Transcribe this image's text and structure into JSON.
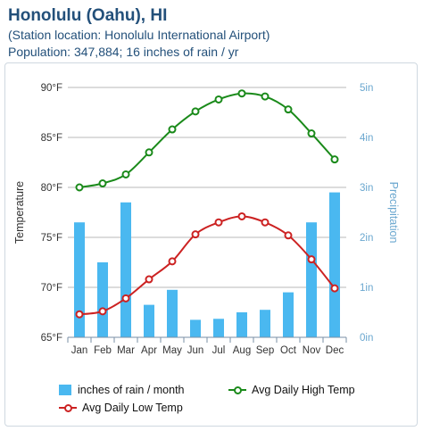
{
  "header": {
    "title": "Honolulu (Oahu), HI",
    "line1": "(Station location: Honolulu International Airport)",
    "line2": "Population: 347,884; 16 inches of rain / yr"
  },
  "colors": {
    "high": "#1a8a1a",
    "low": "#cc2222",
    "rain": "#4ab8f0",
    "right_axis": "#6aa7cf",
    "left_axis": "#333333"
  },
  "chart_data": {
    "type": "bar",
    "categories": [
      "Jan",
      "Feb",
      "Mar",
      "Apr",
      "May",
      "Jun",
      "Jul",
      "Aug",
      "Sep",
      "Oct",
      "Nov",
      "Dec"
    ],
    "series": [
      {
        "name": "inches of rain / month",
        "type": "bar",
        "axis": "right",
        "values": [
          2.3,
          1.5,
          2.7,
          0.65,
          0.95,
          0.35,
          0.37,
          0.5,
          0.55,
          0.9,
          2.3,
          2.9
        ]
      },
      {
        "name": "Avg Daily High Temp",
        "type": "line",
        "axis": "left",
        "values": [
          80,
          80.4,
          81.3,
          83.5,
          85.8,
          87.6,
          88.8,
          89.4,
          89.1,
          87.8,
          85.4,
          82.8
        ]
      },
      {
        "name": "Avg Daily Low Temp",
        "type": "line",
        "axis": "left",
        "values": [
          67.3,
          67.6,
          68.9,
          70.8,
          72.6,
          75.3,
          76.5,
          77.1,
          76.5,
          75.2,
          72.8,
          69.9
        ]
      }
    ],
    "ylabel": "Temperature",
    "ylabel_right": "Precipitation",
    "ylim": [
      65,
      90
    ],
    "ylim_right": [
      0,
      5
    ],
    "yticks": [
      "90°F",
      "85°F",
      "80°F",
      "75°F",
      "70°F",
      "65°F"
    ],
    "yticks_right": [
      "5in",
      "4in",
      "3in",
      "2in",
      "1in",
      "0in"
    ],
    "grid": true,
    "legend_position": "bottom"
  }
}
